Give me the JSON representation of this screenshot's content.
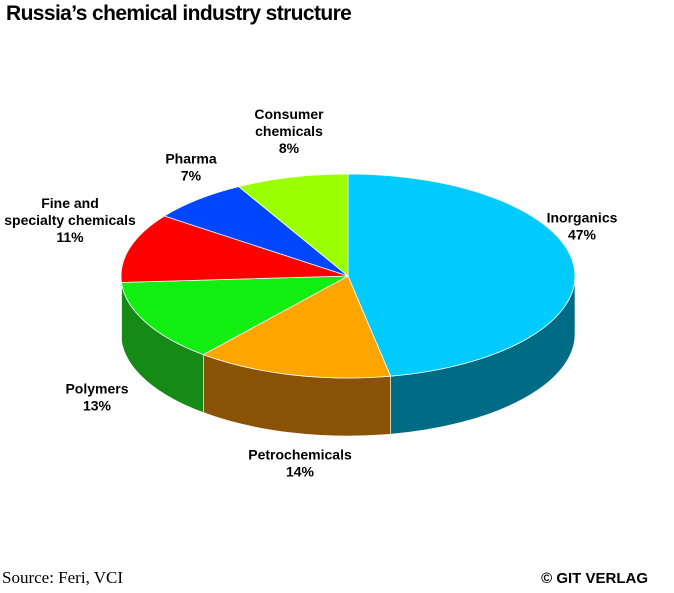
{
  "chart_data": {
    "type": "pie",
    "title": "Russia’s chemical industry structure",
    "slices": [
      {
        "label_lines": [
          "Inorganics"
        ],
        "value": 47,
        "value_label": "47%",
        "color": "#00cbfc",
        "side_color": "#006b85"
      },
      {
        "label_lines": [
          "Petrochemicals"
        ],
        "value": 14,
        "value_label": "14%",
        "color": "#ffa500",
        "side_color": "#8a5205"
      },
      {
        "label_lines": [
          "Polymers"
        ],
        "value": 13,
        "value_label": "13%",
        "color": "#12ee12",
        "side_color": "#168a16"
      },
      {
        "label_lines": [
          "Fine and",
          "specialty chemicals"
        ],
        "value": 11,
        "value_label": "11%",
        "color": "#ff0000",
        "side_color": "#a00000"
      },
      {
        "label_lines": [
          "Pharma"
        ],
        "value": 7,
        "value_label": "7%",
        "color": "#0046ff",
        "side_color": "#00237f"
      },
      {
        "label_lines": [
          "Consumer",
          "chemicals"
        ],
        "value": 8,
        "value_label": "8%",
        "color": "#9cff00",
        "side_color": "#5a9000"
      }
    ]
  },
  "footer": {
    "source": "Source: Feri, VCI",
    "credit": "© GIT VERLAG"
  }
}
